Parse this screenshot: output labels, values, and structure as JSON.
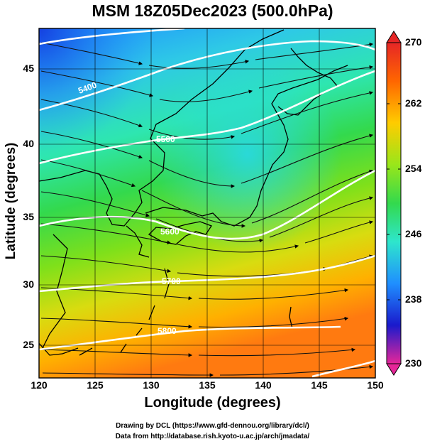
{
  "title": "MSM 18Z05Dec2023 (500.0hPa)",
  "map": {
    "xlabel": "Longitude (degrees)",
    "ylabel": "Latitude  (degrees)",
    "lon_ticks": [
      "120",
      "125",
      "130",
      "135",
      "140",
      "145",
      "150"
    ],
    "lat_ticks": [
      "45",
      "40",
      "35",
      "30",
      "25"
    ],
    "lon_range": [
      120,
      150
    ],
    "lat_range": [
      22.4,
      47.6
    ],
    "field": "Temperature (K), shaded",
    "contour_labels": [
      "5400",
      "5500",
      "5600",
      "5700",
      "5800"
    ],
    "contour_color": "#ffffff",
    "streamlines": "wind streamlines, black with arrowheads",
    "coastline_color": "#000000"
  },
  "colorbar": {
    "ticks": [
      "270",
      "262",
      "254",
      "246",
      "238",
      "230"
    ],
    "range": [
      230,
      270
    ],
    "colors": [
      "#e62699",
      "#1a1acc",
      "#1f8fff",
      "#2ee6cc",
      "#33d94d",
      "#99e61a",
      "#ffcc00",
      "#ff6600",
      "#e62626"
    ]
  },
  "credits": {
    "line1": "Drawing by DCL (https://www.gfd-dennou.org/library/dcl/)",
    "line2": "Data from http://database.rish.kyoto-u.ac.jp/arch/jmadata/"
  }
}
